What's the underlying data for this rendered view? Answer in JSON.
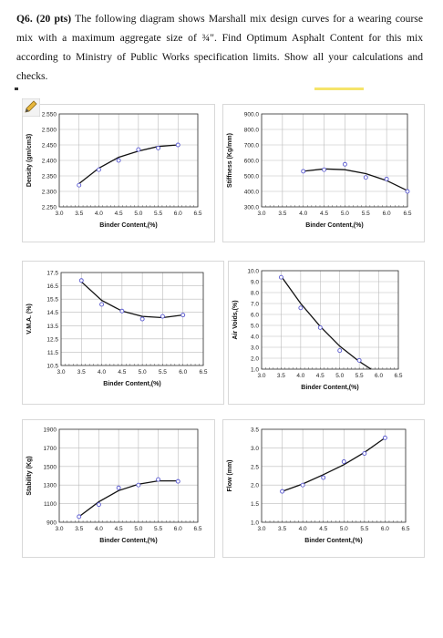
{
  "question": {
    "number": "Q6.",
    "points": "(20 pts)",
    "body": "The following diagram shows Marshall mix design curves for a wearing course mix with a maximum aggregate size of ¾\". Find Optimum Asphalt Content for this mix according to Ministry of Public Works specification limits. Show all your calculations and checks."
  },
  "chart_data": [
    {
      "id": "density",
      "type": "scatter",
      "xlabel": "Binder Content,(%)",
      "ylabel": "Density (gm/cm3)",
      "xlim": [
        3.0,
        6.5
      ],
      "ylim": [
        2.25,
        2.55
      ],
      "xticks": [
        "3.0",
        "3.5",
        "4.0",
        "4.5",
        "5.0",
        "5.5",
        "6.0",
        "6.5"
      ],
      "yticks": [
        "2.250",
        "2.300",
        "2.350",
        "2.400",
        "2.450",
        "2.500",
        "2.550"
      ],
      "x": [
        3.5,
        4.0,
        4.5,
        5.0,
        5.5,
        6.0
      ],
      "y": [
        2.32,
        2.37,
        2.4,
        2.435,
        2.44,
        2.45
      ],
      "fit": [
        [
          3.5,
          2.325
        ],
        [
          4.0,
          2.375
        ],
        [
          4.5,
          2.41
        ],
        [
          5.0,
          2.43
        ],
        [
          5.5,
          2.445
        ],
        [
          6.0,
          2.45
        ]
      ]
    },
    {
      "id": "stiffness",
      "type": "scatter",
      "xlabel": "Binder Content,(%)",
      "ylabel": "Stiffness (Kg/mm)",
      "xlim": [
        3.0,
        6.5
      ],
      "ylim": [
        300,
        900
      ],
      "xticks": [
        "3.0",
        "3.5",
        "4.0",
        "4.5",
        "5.0",
        "5.5",
        "6.0",
        "6.5"
      ],
      "yticks": [
        "300.0",
        "400.0",
        "500.0",
        "600.0",
        "700.0",
        "800.0",
        "900.0"
      ],
      "x": [
        4.0,
        4.5,
        5.0,
        5.5,
        6.0,
        6.5
      ],
      "y": [
        530,
        540,
        575,
        490,
        480,
        400
      ],
      "fit": [
        [
          4.0,
          530
        ],
        [
          4.5,
          545
        ],
        [
          5.0,
          540
        ],
        [
          5.5,
          515
        ],
        [
          6.0,
          470
        ],
        [
          6.5,
          405
        ]
      ]
    },
    {
      "id": "vma",
      "type": "scatter",
      "xlabel": "Binder Content,(%)",
      "ylabel": "V.M.A. (%)",
      "xlim": [
        3.0,
        6.5
      ],
      "ylim": [
        10.5,
        17.5
      ],
      "xticks": [
        "3.0",
        "3.5",
        "4.0",
        "4.5",
        "5.0",
        "5.5",
        "6.0",
        "6.5"
      ],
      "yticks": [
        "10.5",
        "11.5",
        "12.5",
        "13.5",
        "14.5",
        "15.5",
        "16.5",
        "17.5"
      ],
      "x": [
        3.5,
        4.0,
        4.5,
        5.0,
        5.5,
        6.0
      ],
      "y": [
        16.9,
        15.1,
        14.6,
        14.0,
        14.2,
        14.3
      ],
      "fit": [
        [
          3.5,
          16.8
        ],
        [
          4.0,
          15.4
        ],
        [
          4.5,
          14.6
        ],
        [
          5.0,
          14.2
        ],
        [
          5.5,
          14.1
        ],
        [
          6.0,
          14.3
        ]
      ]
    },
    {
      "id": "airvoids",
      "type": "scatter",
      "xlabel": "Binder Content,(%)",
      "ylabel": "Air Voids,(%)",
      "xlim": [
        3.0,
        6.5
      ],
      "ylim": [
        1.0,
        10.0
      ],
      "xticks": [
        "3.0",
        "3.5",
        "4.0",
        "4.5",
        "5.0",
        "5.5",
        "6.0",
        "6.5"
      ],
      "yticks": [
        "1.0",
        "2.0",
        "3.0",
        "4.0",
        "5.0",
        "6.0",
        "7.0",
        "8.0",
        "9.0",
        "10.0"
      ],
      "x": [
        3.5,
        4.0,
        4.5,
        5.0,
        5.5
      ],
      "y": [
        9.4,
        6.6,
        4.8,
        2.7,
        1.8
      ],
      "fit": [
        [
          3.5,
          9.5
        ],
        [
          4.0,
          7.0
        ],
        [
          4.5,
          4.9
        ],
        [
          5.0,
          3.1
        ],
        [
          5.5,
          1.7
        ],
        [
          5.8,
          1.0
        ]
      ]
    },
    {
      "id": "stability",
      "type": "scatter",
      "xlabel": "Binder Content,(%)",
      "ylabel": "Stability (Kg)",
      "xlim": [
        3.0,
        6.5
      ],
      "ylim": [
        900,
        1900
      ],
      "xticks": [
        "3.0",
        "3.5",
        "4.0",
        "4.5",
        "5.0",
        "5.5",
        "6.0",
        "6.5"
      ],
      "yticks": [
        "900",
        "1100",
        "1300",
        "1500",
        "1700",
        "1900"
      ],
      "x": [
        3.5,
        4.0,
        4.5,
        5.0,
        5.5,
        6.0
      ],
      "y": [
        960,
        1090,
        1270,
        1300,
        1360,
        1340
      ],
      "fit": [
        [
          3.5,
          960
        ],
        [
          4.0,
          1120
        ],
        [
          4.5,
          1240
        ],
        [
          5.0,
          1310
        ],
        [
          5.5,
          1345
        ],
        [
          6.0,
          1345
        ]
      ]
    },
    {
      "id": "flow",
      "type": "scatter",
      "xlabel": "Binder Content,(%)",
      "ylabel": "Flow (mm)",
      "xlim": [
        3.0,
        6.5
      ],
      "ylim": [
        1.0,
        3.5
      ],
      "xticks": [
        "3.0",
        "3.5",
        "4.0",
        "4.5",
        "5.0",
        "5.5",
        "6.0",
        "6.5"
      ],
      "yticks": [
        "1.0",
        "1.5",
        "2.0",
        "2.5",
        "3.0",
        "3.5"
      ],
      "x": [
        3.5,
        4.0,
        4.5,
        5.0,
        5.5,
        6.0
      ],
      "y": [
        1.83,
        2.0,
        2.2,
        2.63,
        2.85,
        3.27
      ],
      "fit": [
        [
          3.5,
          1.83
        ],
        [
          4.0,
          2.03
        ],
        [
          4.5,
          2.28
        ],
        [
          5.0,
          2.55
        ],
        [
          5.5,
          2.88
        ],
        [
          6.0,
          3.27
        ]
      ]
    }
  ]
}
